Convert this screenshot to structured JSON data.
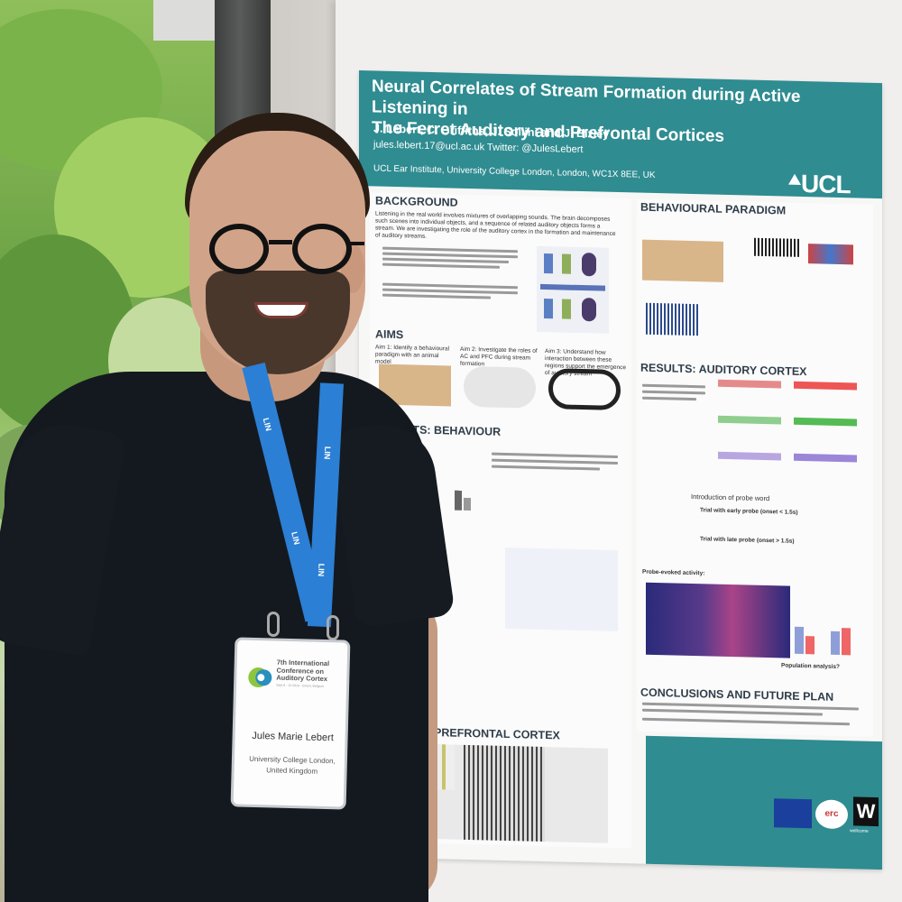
{
  "poster": {
    "title_line1": "Neural Correlates of Stream Formation during Active Listening in",
    "title_line2": "The Ferret Auditory and Prefrontal Cortices",
    "authors": "J. Lebert, C. Griffiths, J. Sollini and J. Bizley",
    "contact": "jules.lebert.17@ucl.ac.uk Twitter: @JulesLebert",
    "institution": "UCL Ear Institute, University College London, London, WC1X 8EE, UK",
    "logo": "UCL",
    "sections": {
      "background": "BACKGROUND",
      "aims": "AIMS",
      "results_behaviour": "RESULTS: BEHAVIOUR",
      "results_pfc": "RESULTS: PREFRONTAL CORTEX",
      "behavioural_paradigm": "BEHAVIOURAL PARADIGM",
      "results_ac": "RESULTS: AUDITORY CORTEX",
      "conclusions": "CONCLUSIONS AND FUTURE PLAN"
    },
    "background_text": "Listening in the real world involves mixtures of overlapping sounds. The brain decomposes such scenes into individual objects, and a sequence of related auditory objects forms a stream. We are investigating the role of the auditory cortex in the formation and maintenance of auditory streams.",
    "aim1": "Aim 1: Identify a behavioural paradigm with an animal model",
    "aim2": "Aim 2: Investigate the roles of AC and PFC during stream formation",
    "aim3": "Aim 3: Understand how interaction between these regions support the emergence of auditory stream",
    "probe_title": "Introduction of probe word",
    "probe_early": "Trial with early probe (onset < 1.5s)",
    "probe_late": "Trial with late probe (onset > 1.5s)",
    "probe_evoked": "Probe-evoked activity:",
    "population_analysis": "Population analysis?",
    "funders": [
      "erc",
      "W"
    ],
    "funder_name": "wellcome"
  },
  "badge": {
    "conference": "7th International Conference on Auditory Cortex",
    "conference_sub": "Sept 8 - 13 2019 - Ghent, Belgium",
    "name": "Jules Marie Lebert",
    "affiliation_line1": "University College London,",
    "affiliation_line2": "United Kingdom"
  },
  "lanyard": {
    "text": "LIN"
  }
}
